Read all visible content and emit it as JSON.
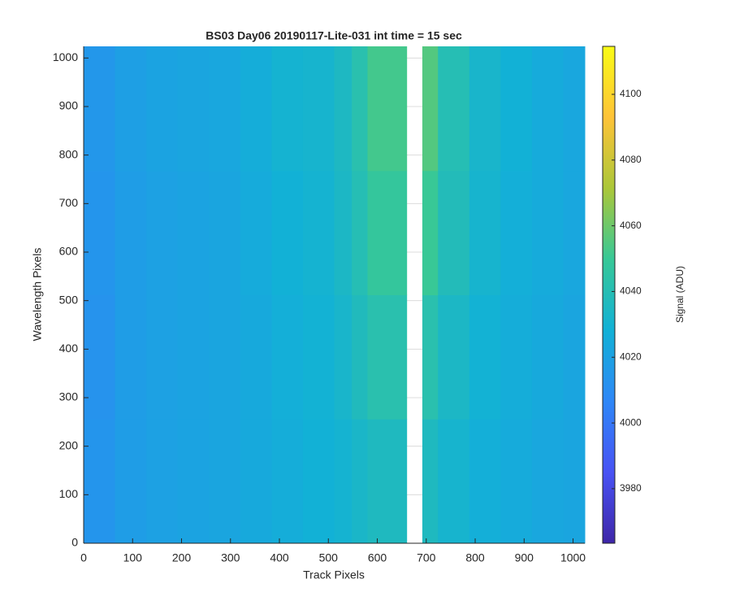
{
  "chart_data": {
    "type": "heatmap",
    "title": "BS03 Day06 20190117-Lite-031 int time = 15 sec",
    "x_label": "Track Pixels",
    "y_label": "Wavelength Pixels",
    "colorbar_label": "Signal (ADU)",
    "x_bins": [
      0,
      64,
      128,
      192,
      256,
      320,
      384,
      448,
      512,
      548,
      580,
      660,
      692,
      724,
      788,
      852,
      916,
      980,
      1024
    ],
    "y_bins": [
      0,
      256,
      512,
      768,
      1024
    ],
    "values": [
      [
        4014,
        4018,
        4020,
        4021,
        4022,
        4024,
        4026,
        4028,
        4030,
        4033,
        4036,
        null,
        4036,
        4031,
        4027,
        4025,
        4023,
        4022
      ],
      [
        4013,
        4018,
        4020,
        4021,
        4022,
        4024,
        4027,
        4029,
        4032,
        4037,
        4042,
        null,
        4042,
        4034,
        4029,
        4026,
        4024,
        4022
      ],
      [
        4014,
        4018,
        4020,
        4021,
        4022,
        4025,
        4028,
        4030,
        4034,
        4040,
        4048,
        null,
        4050,
        4038,
        4031,
        4027,
        4025,
        4023
      ],
      [
        4015,
        4019,
        4021,
        4022,
        4023,
        4026,
        4030,
        4031,
        4035,
        4042,
        4052,
        null,
        4055,
        4040,
        4032,
        4028,
        4025,
        4023
      ]
    ],
    "xlim": [
      0,
      1024
    ],
    "ylim": [
      0,
      1024
    ],
    "xticks": [
      0,
      100,
      200,
      300,
      400,
      500,
      600,
      700,
      800,
      900,
      1000
    ],
    "yticks": [
      0,
      100,
      200,
      300,
      400,
      500,
      600,
      700,
      800,
      900,
      1000
    ],
    "clim": [
      3963.4,
      4114.6
    ],
    "cticks": [
      3980,
      4000,
      4020,
      4040,
      4060,
      4080,
      4100
    ],
    "colormap": [
      "#3e26a8",
      "#4852f4",
      "#2e87f7",
      "#12b1d6",
      "#37c897",
      "#abc739",
      "#fec338",
      "#f9fb15"
    ],
    "grid": true
  }
}
